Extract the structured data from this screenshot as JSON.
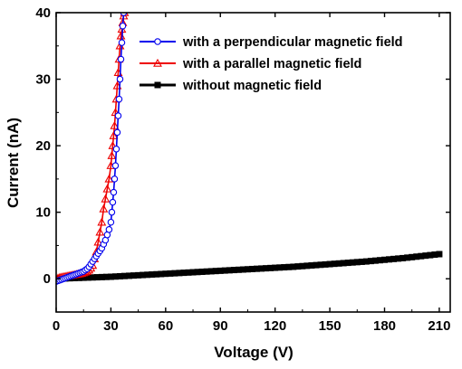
{
  "chart_data": {
    "type": "scatter",
    "xlabel": "Voltage (V)",
    "ylabel": "Current (nA)",
    "xlim": [
      0,
      216
    ],
    "ylim": [
      -5,
      40
    ],
    "xticks": [
      0,
      30,
      60,
      90,
      120,
      150,
      180,
      210
    ],
    "yticks": [
      0,
      10,
      20,
      30,
      40
    ],
    "grid": false,
    "legend_position": "top-right",
    "series": [
      {
        "name": "with a perpendicular magnetic field",
        "color": "#0000ee",
        "marker": "circle",
        "x": [
          0,
          1,
          2,
          3,
          4,
          5,
          6,
          7,
          8,
          9,
          10,
          11,
          12,
          13,
          14,
          15,
          16,
          17,
          18,
          19,
          20,
          21,
          22,
          23,
          24,
          25,
          26,
          27,
          28,
          29,
          30,
          30.5,
          31,
          31.5,
          32,
          32.5,
          33,
          33.5,
          34,
          34.5,
          35,
          35.5,
          36,
          36.5,
          37
        ],
        "y": [
          -0.4,
          -0.3,
          -0.2,
          -0.1,
          0.0,
          0.1,
          0.2,
          0.3,
          0.4,
          0.5,
          0.6,
          0.7,
          0.8,
          0.9,
          1.0,
          1.1,
          1.3,
          1.5,
          1.8,
          2.2,
          2.6,
          3.0,
          3.4,
          3.8,
          4.2,
          4.6,
          5.2,
          5.8,
          6.6,
          7.4,
          8.5,
          10.0,
          11.5,
          13.0,
          15.0,
          17.0,
          19.5,
          22.0,
          24.5,
          27.0,
          30.0,
          33.0,
          35.5,
          38.0,
          40.0
        ]
      },
      {
        "name": "with a parallel magnetic field",
        "color": "#ee0000",
        "marker": "triangle",
        "x": [
          0,
          1,
          2,
          3,
          4,
          5,
          6,
          7,
          8,
          9,
          10,
          11,
          12,
          13,
          14,
          15,
          16,
          17,
          18,
          19,
          20,
          21,
          22,
          23,
          24,
          25,
          26,
          27,
          28,
          29,
          30,
          30.5,
          31,
          31.5,
          32,
          32.5,
          33,
          33.5,
          34,
          34.5,
          35,
          35.5,
          36,
          36.5,
          37,
          37.5
        ],
        "y": [
          0.0,
          0.1,
          0.2,
          0.25,
          0.3,
          0.35,
          0.4,
          0.45,
          0.5,
          0.55,
          0.6,
          0.65,
          0.7,
          0.75,
          0.8,
          0.9,
          1.0,
          1.1,
          1.3,
          1.6,
          2.0,
          3.0,
          4.0,
          5.5,
          7.0,
          8.5,
          10.5,
          12.0,
          13.5,
          15.0,
          17.0,
          18.5,
          20.0,
          21.5,
          23.0,
          25.0,
          27.0,
          29.0,
          31.0,
          33.0,
          35.0,
          36.5,
          37.5,
          38.5,
          39.5,
          40.0
        ]
      },
      {
        "name": "without magnetic field",
        "color": "#000000",
        "marker": "square",
        "x": [
          0,
          10,
          20,
          30,
          40,
          50,
          60,
          70,
          80,
          90,
          100,
          110,
          120,
          130,
          140,
          150,
          160,
          170,
          180,
          190,
          200,
          210
        ],
        "y": [
          0.0,
          0.1,
          0.2,
          0.3,
          0.45,
          0.6,
          0.75,
          0.9,
          1.05,
          1.2,
          1.35,
          1.5,
          1.65,
          1.8,
          2.0,
          2.2,
          2.4,
          2.6,
          2.85,
          3.1,
          3.4,
          3.7
        ]
      }
    ]
  }
}
